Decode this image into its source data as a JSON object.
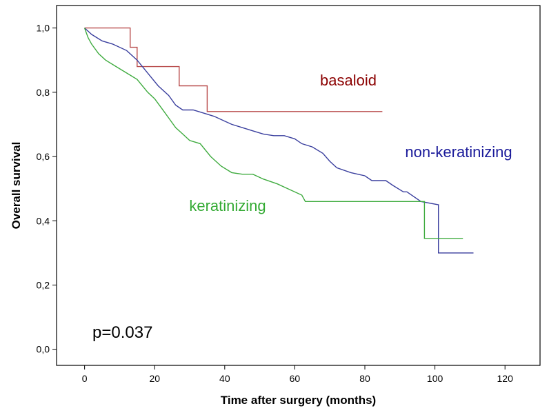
{
  "chart_data": {
    "type": "line",
    "xlabel": "Time after surgery (months)",
    "ylabel": "Overall survival",
    "xlim": [
      -8,
      130
    ],
    "ylim": [
      -0.05,
      1.07
    ],
    "x_ticks": [
      0,
      20,
      40,
      60,
      80,
      100,
      120
    ],
    "y_ticks": [
      0.0,
      0.2,
      0.4,
      0.6,
      0.8,
      1.0
    ],
    "x_tick_labels": [
      "0",
      "20",
      "40",
      "60",
      "80",
      "100",
      "120"
    ],
    "y_tick_labels": [
      "0,0",
      "0,2",
      "0,4",
      "0,6",
      "0,8",
      "1,0"
    ],
    "grid": false,
    "annotation": "p=0.037",
    "series": [
      {
        "name": "basaloid",
        "color": "#b84a4a",
        "label_color": "#8b0000",
        "x": [
          0,
          13,
          13,
          15,
          15,
          27,
          27,
          35,
          35,
          85
        ],
        "y": [
          1.0,
          1.0,
          0.94,
          0.94,
          0.88,
          0.88,
          0.82,
          0.82,
          0.74,
          0.74
        ]
      },
      {
        "name": "non-keratinizing",
        "color": "#3a3f9e",
        "label_color": "#1a1a9a",
        "x": [
          0,
          2,
          5,
          8,
          12,
          15,
          18,
          21,
          24,
          26,
          28,
          31,
          34,
          37,
          40,
          42,
          45,
          48,
          51,
          54,
          57,
          60,
          62,
          65,
          68,
          70,
          72,
          76,
          80,
          82,
          86,
          88,
          91,
          92,
          96,
          101,
          101,
          111
        ],
        "y": [
          1.0,
          0.98,
          0.96,
          0.95,
          0.93,
          0.9,
          0.86,
          0.82,
          0.79,
          0.76,
          0.745,
          0.745,
          0.735,
          0.725,
          0.71,
          0.7,
          0.69,
          0.68,
          0.67,
          0.665,
          0.665,
          0.655,
          0.64,
          0.63,
          0.61,
          0.585,
          0.565,
          0.55,
          0.54,
          0.525,
          0.525,
          0.51,
          0.49,
          0.49,
          0.46,
          0.45,
          0.3,
          0.3
        ]
      },
      {
        "name": "keratinizing",
        "color": "#3fab3f",
        "label_color": "#33aa33",
        "x": [
          0,
          1,
          2,
          4,
          6,
          9,
          12,
          15,
          18,
          20,
          22,
          24,
          26,
          28,
          30,
          33,
          36,
          39,
          42,
          45,
          48,
          51,
          55,
          58,
          62,
          63,
          70,
          80,
          90,
          97,
          97,
          108
        ],
        "y": [
          1.0,
          0.97,
          0.95,
          0.92,
          0.9,
          0.88,
          0.86,
          0.84,
          0.8,
          0.78,
          0.75,
          0.72,
          0.69,
          0.67,
          0.65,
          0.64,
          0.6,
          0.57,
          0.55,
          0.545,
          0.545,
          0.53,
          0.515,
          0.5,
          0.48,
          0.46,
          0.46,
          0.46,
          0.46,
          0.46,
          0.345,
          0.345
        ]
      }
    ]
  }
}
